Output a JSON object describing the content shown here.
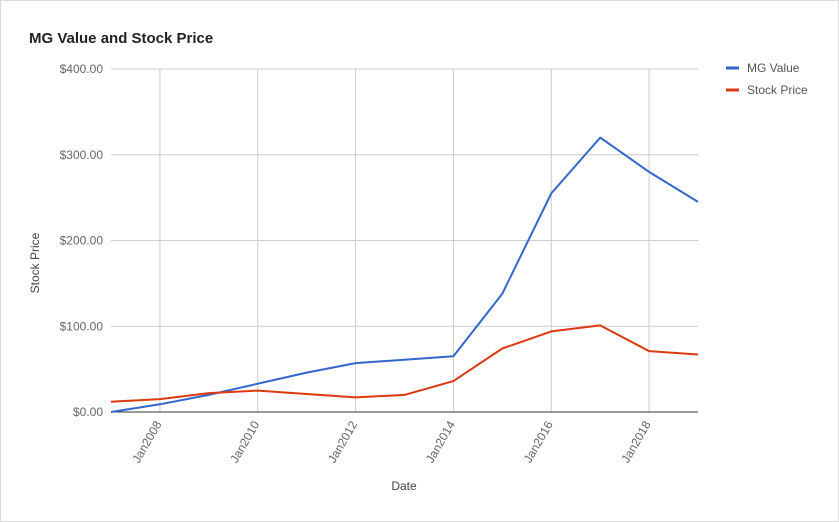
{
  "chart_data": {
    "type": "line",
    "title": "MG Value and Stock Price",
    "xlabel": "Date",
    "ylabel": "Stock Price",
    "x_ticks": [
      "Jan2008",
      "Jan2010",
      "Jan2012",
      "Jan2014",
      "Jan2016",
      "Jan2018"
    ],
    "y_ticks": [
      "$0.00",
      "$100.00",
      "$200.00",
      "$300.00",
      "$400.00"
    ],
    "xlim": [
      2007,
      2019
    ],
    "ylim": [
      0,
      400
    ],
    "grid": true,
    "legend_position": "right",
    "x": [
      2007,
      2008,
      2009,
      2010,
      2011,
      2012,
      2013,
      2014,
      2015,
      2016,
      2017,
      2018,
      2019
    ],
    "series": [
      {
        "name": "MG Value",
        "color": "#3366cc",
        "values": [
          0,
          9,
          20,
          33,
          46,
          57,
          61,
          65,
          138,
          255,
          320,
          280,
          245
        ]
      },
      {
        "name": "Stock Price",
        "color": "#dc3912",
        "values": [
          12,
          15,
          22,
          25,
          21,
          17,
          20,
          36,
          74,
          94,
          101,
          71,
          67
        ]
      }
    ]
  }
}
